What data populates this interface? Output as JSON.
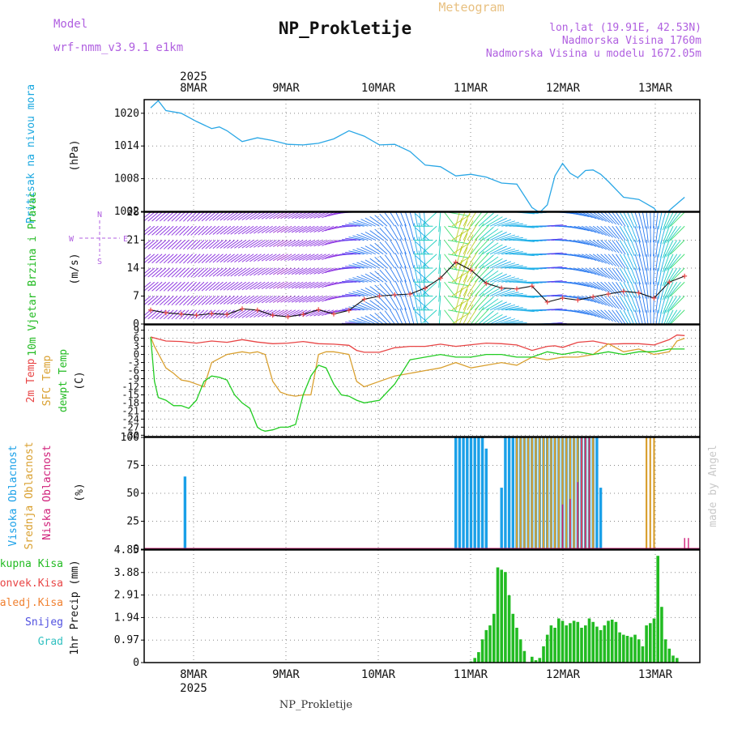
{
  "header": {
    "model_label": "Model",
    "model_value": "wrf-nmm_v3.9.1  e1km",
    "product": "Meteogram",
    "station": "NP_Prokletije",
    "lonlat": "lon,lat (19.91E, 42.53N)",
    "elev": "Nadmorska Visina 1760m",
    "elev_model": "Nadmorska Visina u modelu 1672.05m",
    "footer": "NP_Prokletije",
    "watermark": "made by Angel"
  },
  "time_axis": {
    "year": "2025",
    "days": [
      "8MAR",
      "9MAR",
      "10MAR",
      "11MAR",
      "12MAR",
      "13MAR"
    ],
    "start_hour": 0,
    "end_hour": 144
  },
  "colors": {
    "pressure": "#2aa7e6",
    "temp2m": "#e84545",
    "sfc": "#d9a030",
    "dewpt": "#22cc22",
    "high": "#1aa0e8",
    "mid": "#d9a030",
    "low": "#d0207a",
    "rain": "#22bb22"
  },
  "chart_data": [
    {
      "type": "line",
      "panel": "pressure",
      "ylabel": "Pritisak na nivou mora",
      "unit": "(hPa)",
      "yticks": [
        1002,
        1008,
        1014,
        1020
      ],
      "ylim": [
        1002,
        1022.5
      ],
      "series": [
        {
          "x": [
            0,
            2,
            4,
            8,
            12,
            16,
            18,
            20,
            24,
            28,
            32,
            36,
            40,
            44,
            48,
            52,
            56,
            60,
            64,
            68,
            72,
            76,
            80,
            84,
            88,
            92,
            96,
            100,
            102,
            104,
            106,
            108,
            110,
            112,
            114,
            116,
            118,
            120,
            124,
            128,
            132,
            134,
            136,
            140
          ],
          "values": [
            1021,
            1022.3,
            1020.5,
            1020,
            1018.5,
            1017.2,
            1017.5,
            1016.8,
            1014.8,
            1015.5,
            1015,
            1014.3,
            1014.2,
            1014.5,
            1015.3,
            1016.8,
            1015.8,
            1014.2,
            1014.3,
            1013,
            1010.5,
            1010.2,
            1008.5,
            1008.8,
            1008.3,
            1007.2,
            1007,
            1002.7,
            1001.8,
            1003.2,
            1008.5,
            1010.8,
            1009,
            1008.2,
            1009.5,
            1009.6,
            1008.8,
            1007.5,
            1004.6,
            1004.2,
            1002.6,
            1000.5,
            1002.2,
            1004.6
          ]
        }
      ]
    },
    {
      "type": "line",
      "panel": "wind",
      "ylabel": "10m Vjetar Brzina i Pravac",
      "unit": "(m/s)",
      "compass": [
        "N",
        "W",
        "E",
        "S"
      ],
      "yticks": [
        0,
        7,
        14,
        21,
        28
      ],
      "ylim": [
        0,
        28
      ],
      "series": [
        {
          "name": "speed",
          "x": [
            0,
            4,
            8,
            12,
            16,
            20,
            24,
            28,
            32,
            36,
            40,
            44,
            48,
            52,
            56,
            60,
            64,
            68,
            72,
            76,
            80,
            84,
            88,
            92,
            96,
            100,
            104,
            108,
            112,
            116,
            120,
            124,
            128,
            132,
            136,
            140
          ],
          "values": [
            3.5,
            2.8,
            2.5,
            2.2,
            2.6,
            2.4,
            3.8,
            3.5,
            2.2,
            1.8,
            2.4,
            3.6,
            2.5,
            3.4,
            6.2,
            7.0,
            7.3,
            7.5,
            9.0,
            11.5,
            15.5,
            13.5,
            10.2,
            9.0,
            8.8,
            9.5,
            5.5,
            6.5,
            6.0,
            6.8,
            7.5,
            8.2,
            7.8,
            6.5,
            10.5,
            12.0
          ]
        },
        {
          "name": "direction",
          "x": [
            0,
            12,
            24,
            36,
            48,
            60,
            66,
            72,
            80,
            88,
            96,
            104,
            112,
            120,
            128,
            136,
            140
          ],
          "values": [
            230,
            225,
            235,
            240,
            245,
            300,
            335,
            355,
            15,
            60,
            95,
            85,
            110,
            140,
            165,
            200,
            225
          ]
        }
      ]
    },
    {
      "type": "line",
      "panel": "temperature",
      "series_labels": [
        "2m Temp",
        "SFC Temp",
        "dewpt Temp"
      ],
      "unit": "(C)",
      "yticks": [
        -30,
        -27,
        -24,
        -21,
        -18,
        -15,
        -12,
        -9,
        -6,
        -3,
        0,
        3,
        6,
        9
      ],
      "ylim": [
        -30.5,
        11
      ],
      "series": [
        {
          "name": "2m Temp",
          "x": [
            0,
            4,
            8,
            12,
            16,
            20,
            24,
            28,
            32,
            36,
            40,
            44,
            48,
            52,
            54,
            56,
            60,
            64,
            68,
            72,
            76,
            80,
            84,
            88,
            92,
            96,
            100,
            104,
            106,
            108,
            112,
            116,
            120,
            124,
            128,
            132,
            136,
            138,
            140
          ],
          "values": [
            6.5,
            5,
            4.8,
            4.2,
            5,
            4.5,
            5.5,
            4.6,
            4,
            4.2,
            4.8,
            4,
            3.8,
            3.4,
            1.5,
            0.8,
            0.8,
            2.5,
            3,
            3,
            3.8,
            3,
            3.6,
            4.2,
            4,
            3.5,
            1.5,
            3,
            3.2,
            2.6,
            4.5,
            5,
            3.8,
            4,
            4,
            3.5,
            5.5,
            7.2,
            7
          ]
        },
        {
          "name": "SFC Temp",
          "x": [
            0,
            1,
            4,
            6,
            8,
            10,
            12,
            14,
            16,
            20,
            24,
            26,
            28,
            30,
            32,
            34,
            36,
            38,
            40,
            42,
            44,
            46,
            48,
            50,
            52,
            54,
            56,
            60,
            64,
            68,
            72,
            76,
            80,
            84,
            88,
            92,
            96,
            100,
            104,
            108,
            112,
            116,
            120,
            124,
            128,
            132,
            136,
            138,
            140
          ],
          "values": [
            6.5,
            3,
            -5,
            -7,
            -9.5,
            -10,
            -11,
            -12,
            -3,
            0,
            1,
            0.5,
            1,
            0,
            -10,
            -14,
            -15,
            -15.5,
            -15,
            -15,
            0,
            1,
            1,
            0.5,
            0,
            -10,
            -12,
            -10,
            -8,
            -7,
            -6,
            -5,
            -3,
            -5,
            -4,
            -3,
            -4,
            -1,
            -2,
            -1,
            -1,
            0,
            4,
            1,
            2,
            0,
            1,
            5,
            6
          ]
        },
        {
          "name": "dewpt Temp",
          "x": [
            0,
            1,
            2,
            4,
            6,
            8,
            10,
            12,
            14,
            16,
            18,
            20,
            22,
            24,
            26,
            28,
            29,
            30,
            32,
            34,
            36,
            38,
            40,
            42,
            44,
            46,
            48,
            50,
            52,
            54,
            56,
            60,
            64,
            68,
            72,
            76,
            80,
            84,
            88,
            92,
            96,
            100,
            104,
            108,
            112,
            116,
            120,
            124,
            128,
            132,
            136,
            140
          ],
          "values": [
            6.5,
            -10,
            -16,
            -17,
            -19,
            -19,
            -20,
            -17,
            -10,
            -8,
            -8.5,
            -9.5,
            -15,
            -18,
            -20,
            -27,
            -28,
            -28.5,
            -28,
            -27,
            -27,
            -26,
            -15,
            -8,
            -4,
            -5,
            -11,
            -15,
            -15.5,
            -17,
            -18,
            -17,
            -11,
            -2,
            -1,
            0,
            -1,
            -1,
            0,
            0,
            -1,
            -1,
            1,
            0,
            1,
            0,
            1,
            0,
            1,
            1,
            2,
            2
          ]
        }
      ]
    },
    {
      "type": "bar",
      "panel": "clouds",
      "series_labels": [
        "Visoka Oblacnost",
        "Srednja Oblacnost",
        "Niska Oblacnost"
      ],
      "unit": "(%)",
      "yticks": [
        0,
        25,
        50,
        75,
        100
      ],
      "ylim": [
        0,
        100
      ],
      "series": [
        {
          "name": "Visoka Oblacnost",
          "x": [
            9,
            80,
            81,
            82,
            83,
            84,
            85,
            86,
            87,
            88,
            92,
            93,
            94,
            95,
            96,
            97,
            98,
            99,
            100,
            101,
            102,
            103,
            104,
            105,
            106,
            107,
            108,
            109,
            110,
            111,
            112,
            113,
            114,
            115,
            116,
            117,
            118
          ],
          "values": [
            65,
            100,
            100,
            100,
            100,
            100,
            100,
            100,
            100,
            90,
            55,
            100,
            100,
            100,
            100,
            100,
            100,
            100,
            100,
            100,
            100,
            100,
            100,
            100,
            100,
            100,
            100,
            100,
            100,
            100,
            100,
            100,
            100,
            100,
            100,
            100,
            55
          ]
        },
        {
          "name": "Srednja Oblacnost",
          "x": [
            96,
            97,
            98,
            99,
            100,
            101,
            102,
            103,
            104,
            105,
            106,
            107,
            108,
            109,
            110,
            111,
            112,
            113,
            114,
            115,
            116,
            130,
            131,
            132
          ],
          "values": [
            100,
            100,
            100,
            100,
            100,
            100,
            100,
            100,
            100,
            100,
            100,
            100,
            100,
            100,
            100,
            100,
            100,
            100,
            100,
            100,
            100,
            100,
            100,
            100
          ]
        },
        {
          "name": "Niska Oblacnost",
          "x": [
            108,
            110,
            112,
            113,
            114,
            115,
            140,
            141
          ],
          "values": [
            40,
            45,
            60,
            100,
            100,
            100,
            10,
            10
          ]
        }
      ]
    },
    {
      "type": "bar",
      "panel": "precipitation",
      "series_labels": [
        "Ukupna Kisa",
        "Konvek.Kisa",
        "Zaledj.Kisa",
        "Snijeg",
        "Grad"
      ],
      "unit": "1hr Precip (mm)",
      "yticks": [
        0,
        0.97,
        1.94,
        2.91,
        3.88,
        4.85
      ],
      "ylim": [
        0,
        4.85
      ],
      "series": [
        {
          "name": "Ukupna Kisa",
          "x": [
            84,
            85,
            86,
            87,
            88,
            89,
            90,
            91,
            92,
            93,
            94,
            95,
            96,
            97,
            98,
            100,
            101,
            102,
            103,
            104,
            105,
            106,
            107,
            108,
            109,
            110,
            111,
            112,
            113,
            114,
            115,
            116,
            117,
            118,
            119,
            120,
            121,
            122,
            123,
            124,
            125,
            126,
            127,
            128,
            129,
            130,
            131,
            132,
            133,
            134,
            135,
            136,
            137,
            138
          ],
          "values": [
            0.05,
            0.2,
            0.45,
            1.0,
            1.4,
            1.6,
            2.1,
            4.1,
            4.0,
            3.9,
            2.9,
            2.1,
            1.5,
            1.0,
            0.5,
            0.25,
            0.1,
            0.2,
            0.7,
            1.2,
            1.6,
            1.5,
            1.9,
            1.8,
            1.6,
            1.7,
            1.8,
            1.75,
            1.5,
            1.6,
            1.9,
            1.75,
            1.55,
            1.4,
            1.6,
            1.8,
            1.85,
            1.75,
            1.3,
            1.2,
            1.15,
            1.1,
            1.2,
            1.0,
            0.7,
            1.6,
            1.7,
            1.9,
            4.6,
            2.4,
            1.0,
            0.6,
            0.3,
            0.2
          ]
        }
      ]
    }
  ]
}
